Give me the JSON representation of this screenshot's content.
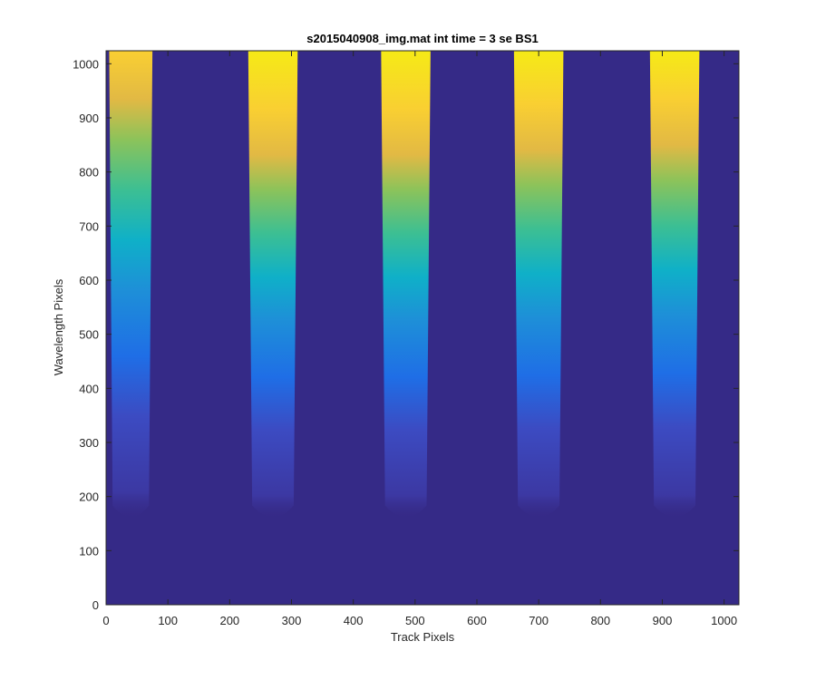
{
  "chart_data": {
    "type": "heatmap",
    "title": "s2015040908_img.mat int time = 3 se   BS1",
    "xlabel": "Track Pixels",
    "ylabel": "Wavelength Pixels",
    "xlim": [
      0,
      1024
    ],
    "ylim": [
      0,
      1024
    ],
    "xticks": [
      0,
      100,
      200,
      300,
      400,
      500,
      600,
      700,
      800,
      900,
      1000
    ],
    "yticks": [
      0,
      100,
      200,
      300,
      400,
      500,
      600,
      700,
      800,
      900,
      1000
    ],
    "colormap": "parula",
    "background_color": "#352a87",
    "grid": false,
    "tracks": [
      {
        "center": 40,
        "half_width_top": 35,
        "y_bottom": 150,
        "y_saturated": 980
      },
      {
        "center": 270,
        "half_width_top": 40,
        "y_bottom": 150,
        "y_saturated": 870
      },
      {
        "center": 485,
        "half_width_top": 40,
        "y_bottom": 150,
        "y_saturated": 870
      },
      {
        "center": 700,
        "half_width_top": 40,
        "y_bottom": 150,
        "y_saturated": 880
      },
      {
        "center": 920,
        "half_width_top": 40,
        "y_bottom": 150,
        "y_saturated": 890
      }
    ]
  }
}
